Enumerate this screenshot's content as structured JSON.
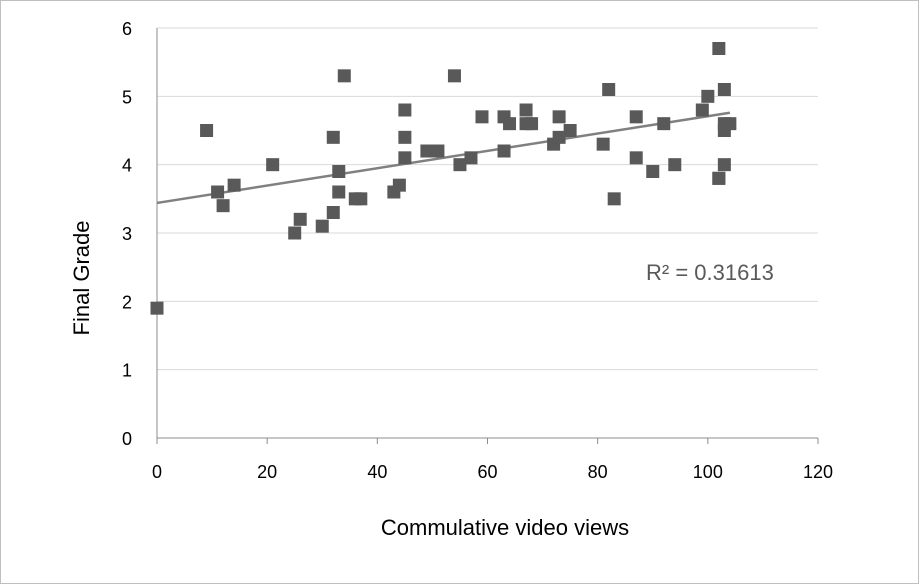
{
  "chart_data": {
    "type": "scatter",
    "title": "",
    "xlabel": "Commulative video views",
    "ylabel": "Final Grade",
    "xlim": [
      0,
      120
    ],
    "ylim": [
      0,
      6
    ],
    "xticks": [
      "0",
      "20",
      "40",
      "60",
      "80",
      "100",
      "120"
    ],
    "yticks": [
      "0",
      "1",
      "2",
      "3",
      "4",
      "5",
      "6"
    ],
    "grid": "horizontal",
    "legend": "none",
    "marker": "square",
    "marker_color": "#595959",
    "trendline_color": "#808080",
    "trendline": {
      "type": "linear",
      "x": [
        0,
        104
      ],
      "y": [
        3.44,
        4.76
      ]
    },
    "annotation": "R² = 0.31613",
    "series": [
      {
        "x": [
          0,
          9,
          11,
          12,
          14,
          21,
          25,
          26,
          30,
          32,
          32,
          33,
          33,
          34,
          36,
          37,
          43,
          44,
          45,
          45,
          45,
          49,
          51,
          54,
          55,
          57,
          59,
          63,
          63,
          64,
          67,
          67,
          68,
          72,
          73,
          73,
          75,
          81,
          82,
          83,
          87,
          87,
          90,
          92,
          94,
          99,
          100,
          102,
          102,
          102,
          103,
          103,
          103,
          103,
          104
        ],
        "y": [
          1.9,
          4.5,
          3.6,
          3.4,
          3.7,
          4.0,
          3.0,
          3.2,
          3.1,
          3.3,
          4.4,
          3.9,
          3.6,
          5.3,
          3.5,
          3.5,
          3.6,
          3.7,
          4.8,
          4.4,
          4.1,
          4.2,
          4.2,
          5.3,
          4.0,
          4.1,
          4.7,
          4.7,
          4.2,
          4.6,
          4.8,
          4.6,
          4.6,
          4.3,
          4.4,
          4.7,
          4.5,
          4.3,
          5.1,
          3.5,
          4.7,
          4.1,
          3.9,
          4.6,
          4.0,
          4.8,
          5.0,
          5.7,
          3.8,
          3.8,
          5.1,
          4.5,
          4.6,
          4.0,
          4.6
        ]
      }
    ]
  }
}
